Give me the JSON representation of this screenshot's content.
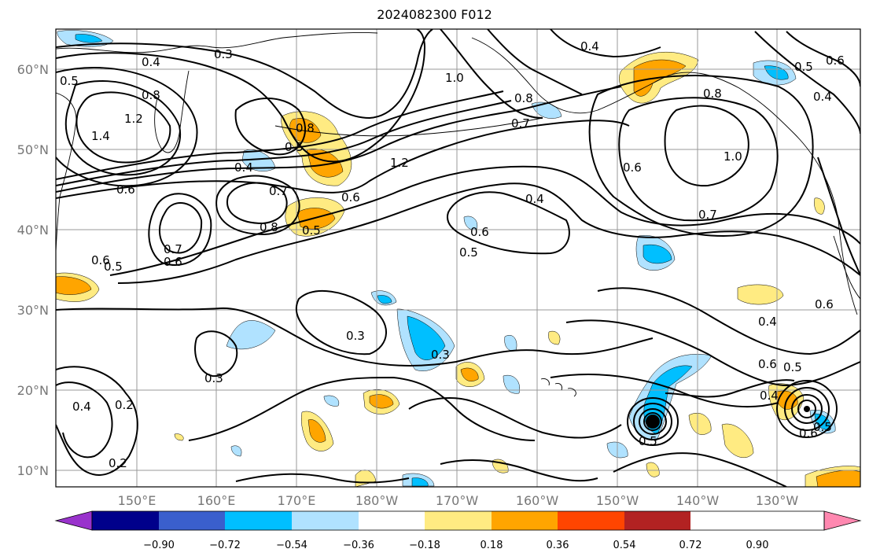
{
  "title": "2024082300 F012",
  "map": {
    "lat_labels": [
      "60°N",
      "50°N",
      "40°N",
      "30°N",
      "20°N",
      "10°N"
    ],
    "lon_labels": [
      "150°E",
      "160°E",
      "170°E",
      "180°W",
      "170°W",
      "160°W",
      "150°W",
      "140°W",
      "130°W"
    ],
    "contour_labels": [
      "0.4",
      "0.3",
      "0.5",
      "0.8",
      "1.0",
      "0.4",
      "0.5",
      "0.6",
      "0.4",
      "1.2",
      "1.4",
      "0.8",
      "0.5",
      "0.4",
      "1.2",
      "0.7",
      "0.8",
      "0.6",
      "1.0",
      "0.8",
      "0.6",
      "0.6",
      "0.7",
      "0.8",
      "0.5",
      "0.6",
      "0.4",
      "0.6",
      "0.5",
      "0.7",
      "0.7",
      "0.6",
      "0.6",
      "0.5",
      "0.3",
      "0.3",
      "0.3",
      "0.2",
      "0.2",
      "0.4",
      "0.4",
      "0.6",
      "0.5",
      "0.4",
      "0.6",
      "0.5",
      "0.5"
    ]
  },
  "colorbar": {
    "ticks": [
      "−0.90",
      "−0.72",
      "−0.54",
      "−0.36",
      "−0.18",
      "0.18",
      "0.36",
      "0.54",
      "0.72",
      "0.90"
    ],
    "colors": [
      "#9932cc",
      "#00008b",
      "#3a5fcd",
      "#00bfff",
      "#b0e2ff",
      "#ffffff",
      "#ffeb82",
      "#ffa500",
      "#ff4500",
      "#b22222",
      "#ff88b0"
    ]
  },
  "fill_colors": {
    "light_blue": "#b0e2ff",
    "blue": "#00bfff",
    "yellow": "#ffeb82",
    "orange": "#ffa500"
  }
}
